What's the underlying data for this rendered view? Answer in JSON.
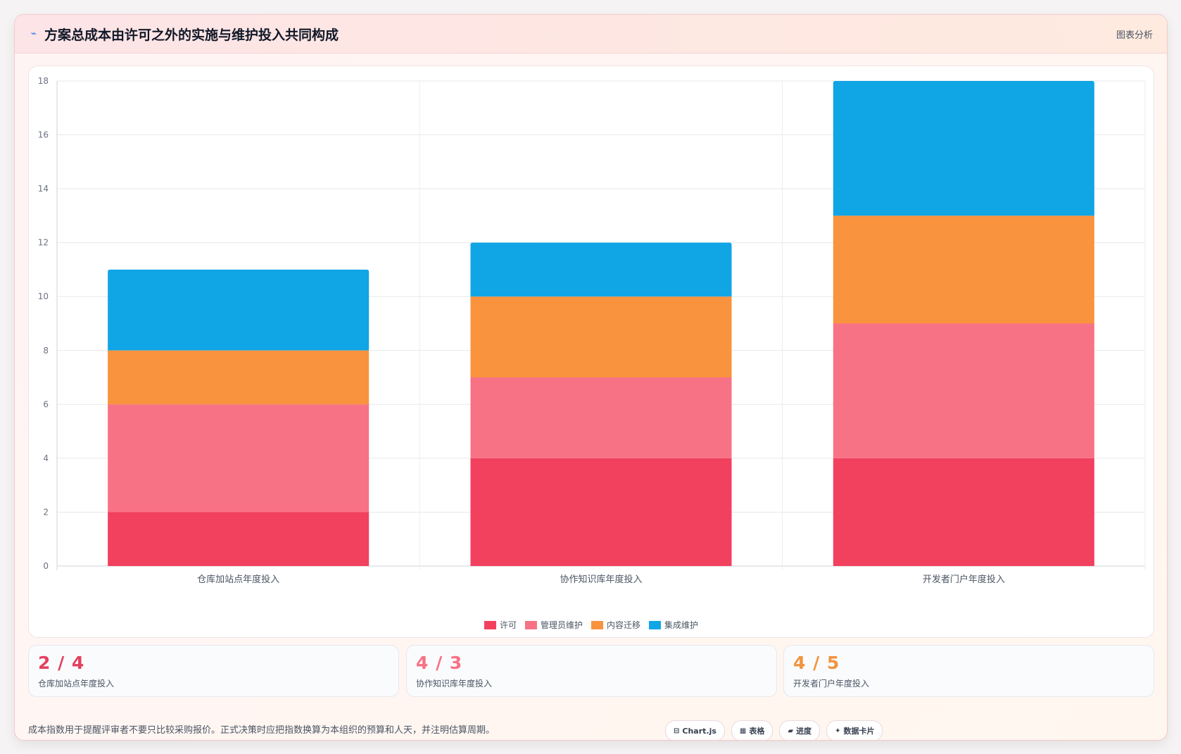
{
  "header": {
    "icon": "line-chart-icon",
    "title": "方案总成本由许可之外的实施与维护投入共同构成",
    "tag": "图表分析"
  },
  "colors": {
    "license": "#f2405f",
    "admin": "#f87285",
    "migration": "#f9933e",
    "integration": "#10a5e5"
  },
  "chart_data": {
    "type": "bar",
    "stacked": true,
    "categories": [
      "仓库加站点年度投入",
      "协作知识库年度投入",
      "开发者门户年度投入"
    ],
    "series": [
      {
        "name": "许可",
        "values": [
          2,
          4,
          4
        ],
        "color": "#f2405f"
      },
      {
        "name": "管理员维护",
        "values": [
          4,
          3,
          5
        ],
        "color": "#f87285"
      },
      {
        "name": "内容迁移",
        "values": [
          2,
          3,
          4
        ],
        "color": "#f9933e"
      },
      {
        "name": "集成维护",
        "values": [
          3,
          2,
          5
        ],
        "color": "#10a5e5"
      }
    ],
    "ylim": [
      0,
      18
    ],
    "yticks": [
      0,
      2,
      4,
      6,
      8,
      10,
      12,
      14,
      16,
      18
    ],
    "grid": true,
    "legend_position": "bottom"
  },
  "cards": [
    {
      "value": "2 / 4",
      "label": "仓库加站点年度投入",
      "color": "#e4405e"
    },
    {
      "value": "4 / 3",
      "label": "协作知识库年度投入",
      "color": "#f87285"
    },
    {
      "value": "4 / 5",
      "label": "开发者门户年度投入",
      "color": "#f2933f"
    }
  ],
  "footer": {
    "note": "成本指数用于提醒评审者不要只比较采购报价。正式决策时应把指数换算为本组织的预算和人天，并注明估算周期。",
    "pills": [
      {
        "icon": "⊟",
        "label": "Chart.js"
      },
      {
        "icon": "▦",
        "label": "表格"
      },
      {
        "icon": "▰",
        "label": "进度"
      },
      {
        "icon": "✦",
        "label": "数据卡片"
      }
    ]
  }
}
